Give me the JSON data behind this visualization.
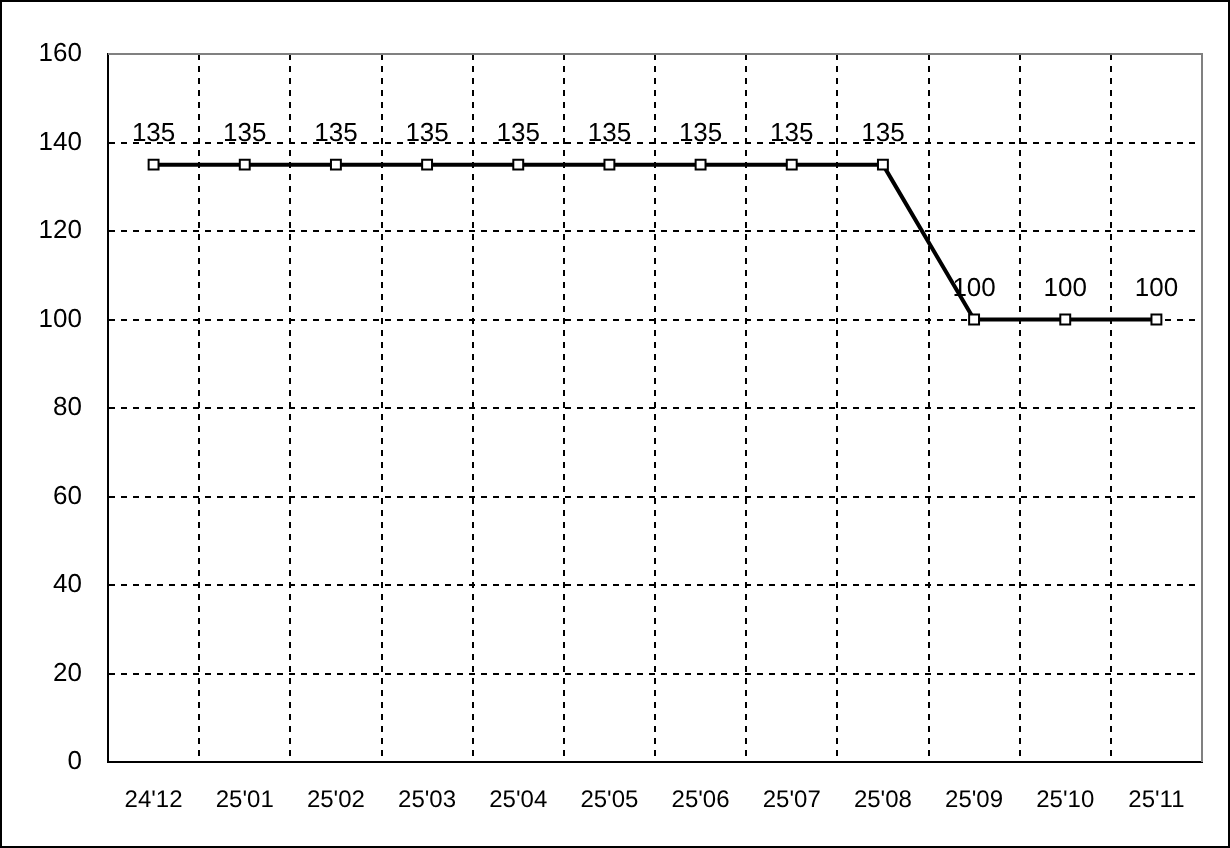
{
  "chart_data": {
    "type": "line",
    "categories": [
      "24'12",
      "25'01",
      "25'02",
      "25'03",
      "25'04",
      "25'05",
      "25'06",
      "25'07",
      "25'08",
      "25'09",
      "25'10",
      "25'11"
    ],
    "series": [
      {
        "color": "#000000",
        "values": [
          135,
          135,
          135,
          135,
          135,
          135,
          135,
          135,
          135,
          100,
          100,
          100
        ]
      }
    ],
    "ylim": [
      0,
      160
    ],
    "yticks": [
      0,
      20,
      40,
      60,
      80,
      100,
      120,
      140,
      160
    ],
    "grid": true,
    "marker": "square",
    "line_style": "solid",
    "data_labels": true
  }
}
